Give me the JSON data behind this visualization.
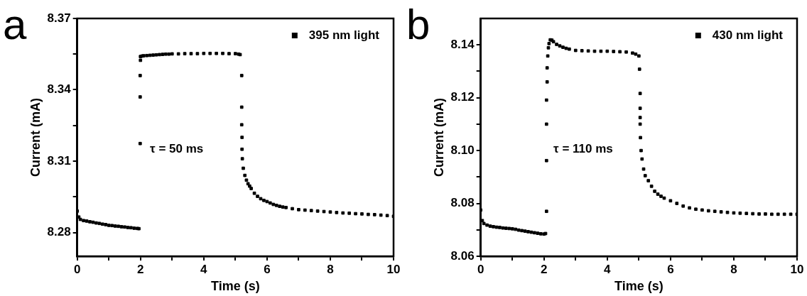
{
  "chart_data": [
    {
      "type": "scatter",
      "xlabel": "Time (s)",
      "ylabel": "Current (mA)",
      "xlim": [
        0,
        10
      ],
      "ylim": [
        8.27,
        8.37
      ],
      "xticks": [
        0,
        {
          "value": 1,
          "label": null
        },
        2,
        {
          "value": 3,
          "label": null
        },
        4,
        {
          "value": 5,
          "label": null
        },
        6,
        {
          "value": 7,
          "label": null
        },
        8,
        {
          "value": 9,
          "label": null
        },
        10
      ],
      "yticks": [
        8.28,
        {
          "value": 8.295,
          "label": null
        },
        8.31,
        {
          "value": 8.325,
          "label": null
        },
        8.34,
        {
          "value": 8.355,
          "label": null
        },
        8.37
      ],
      "marker": "square",
      "legend": "top right",
      "grid": false,
      "annotations": [
        "a",
        "τ = 50 ms"
      ],
      "series": [
        {
          "name": "395 nm light",
          "color": "#000000",
          "x": [
            0,
            0.05,
            0.1,
            0.2,
            0.3,
            0.4,
            0.5,
            0.6,
            0.7,
            0.8,
            0.9,
            1.0,
            1.1,
            1.2,
            1.3,
            1.4,
            1.5,
            1.6,
            1.7,
            1.8,
            1.9,
            1.95,
            1.99,
            1.99,
            1.99,
            2.0,
            2.0,
            2.05,
            2.1,
            2.2,
            2.3,
            2.4,
            2.5,
            2.6,
            2.7,
            2.8,
            2.9,
            3.0,
            3.2,
            3.4,
            3.6,
            3.8,
            4.0,
            4.2,
            4.4,
            4.6,
            4.8,
            5.0,
            5.1,
            5.15,
            5.2,
            5.2,
            5.2,
            5.21,
            5.21,
            5.22,
            5.25,
            5.3,
            5.35,
            5.4,
            5.45,
            5.5,
            5.6,
            5.7,
            5.8,
            5.9,
            6.0,
            6.1,
            6.2,
            6.3,
            6.4,
            6.5,
            6.6,
            6.8,
            7.0,
            7.2,
            7.4,
            7.6,
            7.8,
            8.0,
            8.2,
            8.4,
            8.6,
            8.8,
            9.0,
            9.2,
            9.4,
            9.6,
            9.8,
            10
          ],
          "values": [
            8.289,
            8.2865,
            8.2855,
            8.285,
            8.2848,
            8.2845,
            8.2843,
            8.284,
            8.2838,
            8.2835,
            8.2833,
            8.283,
            8.2829,
            8.2827,
            8.2826,
            8.2824,
            8.2823,
            8.2821,
            8.282,
            8.2818,
            8.2817,
            8.2816,
            8.3174,
            8.337,
            8.346,
            8.3524,
            8.354,
            8.3542,
            8.3543,
            8.3544,
            8.3545,
            8.3546,
            8.3547,
            8.3548,
            8.3549,
            8.355,
            8.355,
            8.3551,
            8.3551,
            8.3552,
            8.3552,
            8.3552,
            8.3553,
            8.3553,
            8.3553,
            8.3553,
            8.3552,
            8.3552,
            8.355,
            8.3548,
            8.346,
            8.3327,
            8.3253,
            8.32,
            8.315,
            8.311,
            8.307,
            8.304,
            8.302,
            8.3005,
            8.2995,
            8.2985,
            8.2965,
            8.2952,
            8.2942,
            8.2935,
            8.293,
            8.2924,
            8.2918,
            8.2914,
            8.291,
            8.2907,
            8.2905,
            8.29,
            8.2896,
            8.2894,
            8.2892,
            8.289,
            8.2888,
            8.2886,
            8.2884,
            8.2882,
            8.2881,
            8.2879,
            8.2878,
            8.2876,
            8.2875,
            8.2873,
            8.2871,
            8.2868
          ]
        }
      ]
    },
    {
      "type": "scatter",
      "xlabel": "Time (s)",
      "ylabel": "Current (mA)",
      "xlim": [
        0,
        10
      ],
      "ylim": [
        8.06,
        8.15
      ],
      "xticks": [
        0,
        {
          "value": 1,
          "label": null
        },
        2,
        {
          "value": 3,
          "label": null
        },
        4,
        {
          "value": 5,
          "label": null
        },
        6,
        {
          "value": 7,
          "label": null
        },
        8,
        {
          "value": 9,
          "label": null
        },
        10
      ],
      "yticks": [
        8.06,
        {
          "value": 8.07,
          "label": null
        },
        8.08,
        {
          "value": 8.09,
          "label": null
        },
        {
          "value": 8.1,
          "label": "8.10"
        },
        {
          "value": 8.11,
          "label": null
        },
        8.12,
        {
          "value": 8.13,
          "label": null
        },
        8.14
      ],
      "marker": "square",
      "legend": "top right",
      "grid": false,
      "annotations": [
        "b",
        "τ = 110 ms"
      ],
      "series": [
        {
          "name": "430 nm light",
          "color": "#000000",
          "x": [
            0,
            0.05,
            0.1,
            0.2,
            0.3,
            0.4,
            0.5,
            0.6,
            0.7,
            0.8,
            0.9,
            1.0,
            1.1,
            1.2,
            1.3,
            1.4,
            1.5,
            1.6,
            1.7,
            1.8,
            1.9,
            2.0,
            2.05,
            2.08,
            2.08,
            2.08,
            2.08,
            2.1,
            2.1,
            2.12,
            2.14,
            2.16,
            2.2,
            2.25,
            2.3,
            2.4,
            2.5,
            2.6,
            2.7,
            2.8,
            3.0,
            3.2,
            3.4,
            3.6,
            3.8,
            4.0,
            4.2,
            4.4,
            4.6,
            4.8,
            4.9,
            5.0,
            5.02,
            5.04,
            5.04,
            5.04,
            5.04,
            5.05,
            5.07,
            5.1,
            5.15,
            5.2,
            5.3,
            5.4,
            5.5,
            5.6,
            5.7,
            5.8,
            6.0,
            6.2,
            6.4,
            6.6,
            6.8,
            7.0,
            7.2,
            7.4,
            7.6,
            7.8,
            8.0,
            8.2,
            8.4,
            8.6,
            8.8,
            9.0,
            9.2,
            9.4,
            9.6,
            9.8,
            10
          ],
          "values": [
            8.0775,
            8.0735,
            8.0724,
            8.0718,
            8.0714,
            8.0712,
            8.071,
            8.0709,
            8.0707,
            8.0706,
            8.0705,
            8.0704,
            8.0702,
            8.0699,
            8.0697,
            8.0695,
            8.0693,
            8.0691,
            8.0689,
            8.0687,
            8.0685,
            8.0684,
            8.0686,
            8.077,
            8.0962,
            8.11,
            8.1191,
            8.126,
            8.1313,
            8.1358,
            8.1389,
            8.1405,
            8.1419,
            8.1418,
            8.1412,
            8.1402,
            8.1396,
            8.1391,
            8.1387,
            8.1384,
            8.1379,
            8.1378,
            8.1377,
            8.1376,
            8.1376,
            8.1376,
            8.1375,
            8.1374,
            8.1373,
            8.1369,
            8.1365,
            8.1358,
            8.1308,
            8.1216,
            8.116,
            8.1125,
            8.11,
            8.1049,
            8.1,
            8.0968,
            8.093,
            8.0905,
            8.0886,
            8.0865,
            8.0846,
            8.0835,
            8.0827,
            8.082,
            8.081,
            8.08,
            8.079,
            8.0783,
            8.0778,
            8.0775,
            8.0772,
            8.077,
            8.0768,
            8.0766,
            8.0764,
            8.0763,
            8.0762,
            8.0761,
            8.076,
            8.076,
            8.0759,
            8.0759,
            8.0759,
            8.0759,
            8.0759
          ]
        }
      ]
    }
  ]
}
